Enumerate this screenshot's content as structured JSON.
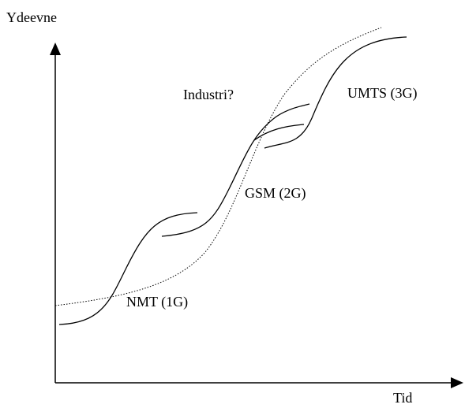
{
  "axes": {
    "y_label": "Ydeevne",
    "x_label": "Tid"
  },
  "curves": [
    {
      "label": "NMT (1G)"
    },
    {
      "label": "GSM (2G)"
    },
    {
      "label": "UMTS (3G)"
    },
    {
      "label": "Industri?"
    }
  ]
}
